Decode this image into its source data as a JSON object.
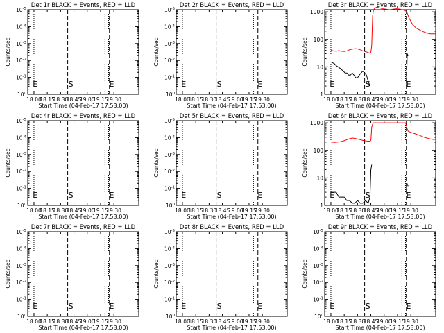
{
  "chart_data": [
    {
      "type": "line",
      "title": "Det 1r BLACK = Events, RED = LLD",
      "ylabel": "Counts/sec",
      "xlabel": "Start Time (04-Feb-17 17:53:00)",
      "xticks": [
        "18:00",
        "18:15",
        "18:30",
        "18:45",
        "19:00",
        "19:15",
        "19:30"
      ],
      "yticks": [
        "10^0",
        "10^-1",
        "10^-2",
        "10^-3",
        "10^-4",
        "10^-5"
      ],
      "markers": [
        "E",
        "S",
        "E"
      ],
      "series": []
    },
    {
      "type": "line",
      "title": "Det 2r BLACK = Events, RED = LLD",
      "ylabel": "Counts/sec",
      "xlabel": "Start Time (04-Feb-17 17:53:00)",
      "xticks": [
        "18:00",
        "18:15",
        "18:30",
        "18:45",
        "19:00",
        "19:15",
        "19:30"
      ],
      "yticks": [
        "10^0",
        "10^-1",
        "10^-2",
        "10^-3",
        "10^-4",
        "10^-5"
      ],
      "markers": [
        "E",
        "S",
        "E"
      ],
      "series": []
    },
    {
      "type": "line",
      "title": "Det 3r BLACK = Events, RED = LLD",
      "ylabel": "Counts/sec",
      "xlabel": "Start Time (04-Feb-17 17:53:00)",
      "xticks": [
        "18:00",
        "18:15",
        "18:30",
        "18:45",
        "19:00",
        "19:15",
        "19:30"
      ],
      "yticks": [
        "1",
        "10",
        "100",
        "1000"
      ],
      "markers": [
        "E",
        "S",
        "E"
      ],
      "log": true,
      "series": [
        {
          "color": "#ff0000",
          "x": [
            0,
            3,
            6,
            9,
            12,
            15,
            18,
            21,
            24,
            27,
            30,
            33,
            36,
            38,
            40,
            42,
            43,
            44,
            45,
            46,
            47,
            48,
            50,
            52,
            55,
            58,
            62,
            66,
            70,
            74,
            78,
            80,
            82,
            84,
            85,
            86,
            88,
            92,
            96,
            100,
            104,
            108,
            112,
            116,
            118
          ],
          "y": [
            40,
            38,
            37,
            39,
            37,
            36,
            38,
            42,
            44,
            46,
            45,
            42,
            38,
            36,
            35,
            33,
            32,
            31,
            34,
            60,
            700,
            1200,
            1400,
            1500,
            1400,
            1300,
            1250,
            1200,
            1250,
            1300,
            1250,
            1200,
            1150,
            1100,
            1000,
            900,
            600,
            350,
            260,
            220,
            190,
            170,
            160,
            160,
            160
          ]
        },
        {
          "color": "#000000",
          "x": [
            0,
            2,
            4,
            6,
            8,
            10,
            12,
            14,
            16,
            18,
            20,
            22,
            24,
            26,
            28,
            30,
            32,
            34,
            36,
            38,
            40,
            42,
            44
          ],
          "y": [
            15,
            14,
            13,
            11,
            10,
            9,
            8,
            7,
            6,
            6,
            5,
            5,
            6,
            5,
            4,
            4,
            5,
            6,
            7,
            6,
            5,
            3,
            2
          ]
        },
        {
          "color": "#000000",
          "x": [
            85,
            86,
            87
          ],
          "y": [
            2,
            30,
            25
          ]
        }
      ]
    },
    {
      "type": "line",
      "title": "Det 4r BLACK = Events, RED = LLD",
      "ylabel": "Counts/sec",
      "xlabel": "Start Time (04-Feb-17 17:53:00)",
      "xticks": [
        "18:00",
        "18:15",
        "18:30",
        "18:45",
        "19:00",
        "19:15",
        "19:30"
      ],
      "yticks": [
        "10^0",
        "10^-1",
        "10^-2",
        "10^-3",
        "10^-4",
        "10^-5"
      ],
      "markers": [
        "E",
        "S",
        "E"
      ],
      "series": []
    },
    {
      "type": "line",
      "title": "Det 5r BLACK = Events, RED = LLD",
      "ylabel": "Counts/sec",
      "xlabel": "Start Time (04-Feb-17 17:53:00)",
      "xticks": [
        "18:00",
        "18:15",
        "18:30",
        "18:45",
        "19:00",
        "19:15",
        "19:30"
      ],
      "yticks": [
        "10^0",
        "10^-1",
        "10^-2",
        "10^-3",
        "10^-4",
        "10^-5"
      ],
      "markers": [
        "E",
        "S",
        "E"
      ],
      "series": []
    },
    {
      "type": "line",
      "title": "Det 6r BLACK = Events, RED = LLD",
      "ylabel": "Counts/sec",
      "xlabel": "Start Time (04-Feb-17 17:53:00)",
      "xticks": [
        "18:00",
        "18:15",
        "18:30",
        "18:45",
        "19:00",
        "19:15",
        "19:30"
      ],
      "yticks": [
        "1",
        "10",
        "100",
        "1000"
      ],
      "markers": [
        "E",
        "S",
        "E"
      ],
      "log": true,
      "series": [
        {
          "color": "#ff0000",
          "x": [
            0,
            4,
            8,
            12,
            16,
            20,
            24,
            28,
            32,
            36,
            40,
            44,
            45,
            46,
            47,
            48,
            50,
            55,
            60,
            65,
            70,
            75,
            80,
            84,
            85,
            86,
            87,
            90,
            95,
            100,
            105,
            110,
            115,
            118
          ],
          "y": [
            200,
            195,
            200,
            210,
            230,
            260,
            280,
            270,
            250,
            230,
            220,
            215,
            230,
            700,
            900,
            1000,
            1000,
            1000,
            1000,
            1000,
            1000,
            1000,
            1000,
            1000,
            800,
            600,
            500,
            450,
            400,
            350,
            300,
            270,
            250,
            250
          ]
        },
        {
          "color": "#000000",
          "x": [
            0,
            3,
            6,
            9,
            12,
            15,
            18,
            21,
            24,
            27,
            30,
            33,
            36,
            39,
            42,
            44,
            45,
            46
          ],
          "y": [
            3,
            3,
            3,
            2,
            2,
            2,
            1.5,
            1.5,
            1.2,
            1.2,
            1.5,
            1.2,
            1.2,
            1.5,
            1.2,
            2,
            20,
            30
          ]
        },
        {
          "color": "#000000",
          "x": [
            85,
            86,
            87
          ],
          "y": [
            4,
            6,
            5
          ]
        }
      ]
    },
    {
      "type": "line",
      "title": "Det 7r BLACK = Events, RED = LLD",
      "ylabel": "Counts/sec",
      "xlabel": "Start Time (04-Feb-17 17:53:00)",
      "xticks": [
        "18:00",
        "18:15",
        "18:30",
        "18:45",
        "19:00",
        "19:15",
        "19:30"
      ],
      "yticks": [
        "10^0",
        "10^-1",
        "10^-2",
        "10^-3",
        "10^-4",
        "10^-5"
      ],
      "markers": [
        "E",
        "S",
        "E"
      ],
      "series": []
    },
    {
      "type": "line",
      "title": "Det 8r BLACK = Events, RED = LLD",
      "ylabel": "Counts/sec",
      "xlabel": "Start Time (04-Feb-17 17:53:00)",
      "xticks": [
        "18:00",
        "18:15",
        "18:30",
        "18:45",
        "19:00",
        "19:15",
        "19:30"
      ],
      "yticks": [
        "10^0",
        "10^-1",
        "10^-2",
        "10^-3",
        "10^-4",
        "10^-5"
      ],
      "markers": [
        "E",
        "S",
        "E"
      ],
      "series": []
    },
    {
      "type": "line",
      "title": "Det 9r BLACK = Events, RED = LLD",
      "ylabel": "Counts/sec",
      "xlabel": "Start Time (04-Feb-17 17:53:00)",
      "xticks": [
        "18:00",
        "18:15",
        "18:30",
        "18:45",
        "19:00",
        "19:15",
        "19:30"
      ],
      "yticks": [
        "10^0",
        "10^-1",
        "10^-2",
        "10^-3",
        "10^-4",
        "10^-5"
      ],
      "markers": [
        "E",
        "S",
        "E"
      ],
      "series": []
    }
  ]
}
